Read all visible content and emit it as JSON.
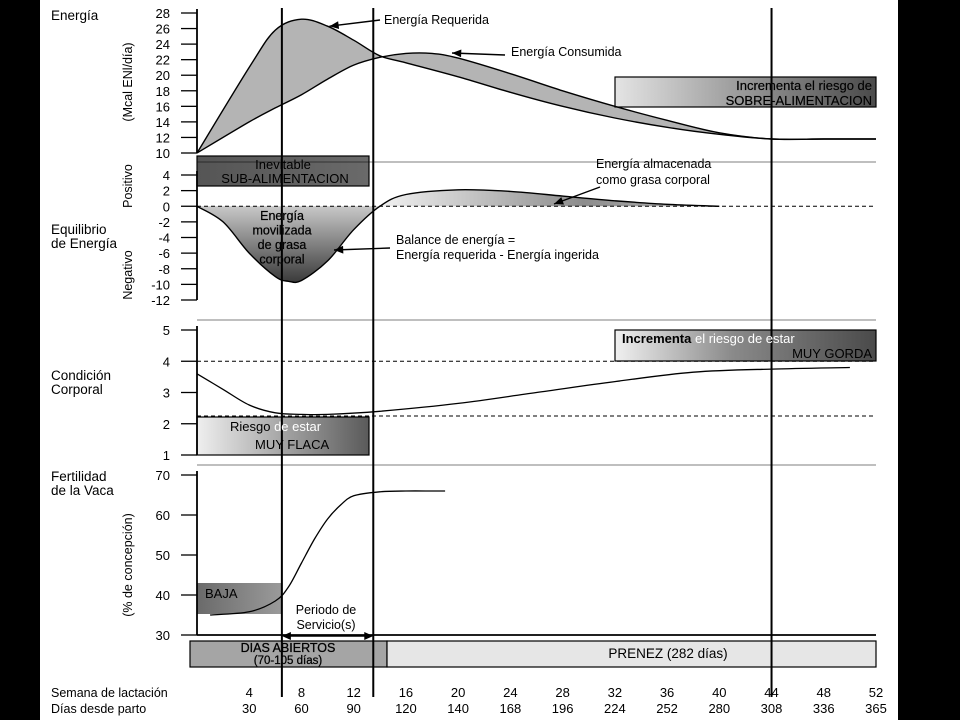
{
  "chart_data": [
    {
      "type": "area",
      "panel": "energy",
      "side_label": "Energía",
      "ylabel": "(Mcal ENl/día)",
      "ylim": [
        10,
        28
      ],
      "yticks": [
        10,
        12,
        14,
        16,
        18,
        20,
        22,
        24,
        26,
        28
      ],
      "series": [
        {
          "name": "Energía Requerida",
          "x": [
            0,
            4,
            6,
            8,
            10,
            12,
            14,
            16,
            20,
            24,
            28,
            32,
            36,
            40,
            44,
            48,
            52
          ],
          "values": [
            10,
            21,
            25.8,
            27.2,
            26.3,
            24.5,
            22.5,
            21.6,
            19.8,
            17.8,
            16,
            14.5,
            13.3,
            12.4,
            11.8,
            11.8,
            11.8
          ]
        },
        {
          "name": "Energía Consumida",
          "x": [
            0,
            4,
            6,
            8,
            10,
            12,
            14,
            16,
            18,
            20,
            24,
            28,
            32,
            36,
            40,
            44,
            48,
            52
          ],
          "values": [
            10,
            14,
            15.8,
            17.5,
            19.5,
            21.3,
            22.3,
            22.8,
            22.8,
            22.2,
            20.2,
            18,
            16,
            14.2,
            12.6,
            11.8,
            11.8,
            11.8
          ]
        }
      ],
      "annotations": [
        {
          "text": "Energía Requerida",
          "x": 9,
          "y": 27.2
        },
        {
          "text": "Energía Consumida",
          "x": 19,
          "y": 22.8
        },
        {
          "lines": [
            "Incrementa el riesgo de",
            "SOBRE-ALIMENTACION"
          ]
        }
      ]
    },
    {
      "type": "area",
      "panel": "energy-balance",
      "side_label_lines": [
        "Equilibrio",
        "de Energía"
      ],
      "ylabel_positive": "Positivo",
      "ylabel_negative": "Negativo",
      "ylim": [
        -12,
        4
      ],
      "yticks": [
        -12,
        -10,
        -8,
        -6,
        -4,
        -2,
        0,
        2,
        4
      ],
      "series": [
        {
          "name": "Balance de energía",
          "x": [
            0,
            2,
            4,
            6,
            7,
            8,
            10,
            12,
            14,
            16,
            20,
            24,
            28,
            32,
            36,
            40
          ],
          "values": [
            0,
            -2,
            -6,
            -9,
            -9.6,
            -9.5,
            -7,
            -3,
            0,
            1.5,
            2.1,
            1.9,
            1.3,
            0.7,
            0.25,
            0
          ]
        }
      ],
      "annotations": [
        {
          "lines": [
            "Inevitable",
            "SUB-ALIMENTACION"
          ]
        },
        {
          "lines": [
            "Energía almacenada",
            "como grasa corporal"
          ],
          "x": 28,
          "y": 1.3
        },
        {
          "lines": [
            "Energía",
            "movilizada",
            "de grasa",
            "corporal"
          ]
        },
        {
          "lines": [
            "Balance de energía =",
            "Energía requerida - Energía ingerida"
          ],
          "x": 10,
          "y": -5
        }
      ]
    },
    {
      "type": "line",
      "panel": "body-condition",
      "side_label_lines": [
        "Condición",
        "Corporal"
      ],
      "ylim": [
        1,
        5
      ],
      "yticks": [
        1,
        2,
        3,
        4,
        5
      ],
      "reference_lines": [
        4,
        2.25
      ],
      "series": [
        {
          "name": "Condición Corporal",
          "x": [
            0,
            2,
            4,
            6,
            8,
            10,
            14,
            20,
            26,
            32,
            38,
            44,
            50
          ],
          "values": [
            3.6,
            3.1,
            2.6,
            2.35,
            2.3,
            2.3,
            2.4,
            2.65,
            3.0,
            3.35,
            3.65,
            3.75,
            3.8
          ]
        }
      ],
      "annotations": [
        {
          "lines": [
            "Incrementa el riesgo de estar",
            "MUY GORDA"
          ],
          "highlight": "Incrementa"
        },
        {
          "lines": [
            "Riesgo de estar",
            "MUY FLACA"
          ],
          "highlight": "Riesgo"
        }
      ]
    },
    {
      "type": "line",
      "panel": "fertility",
      "side_label_lines": [
        "Fertilidad",
        "de la Vaca"
      ],
      "ylabel": "(% de concepción)",
      "ylim": [
        30,
        70
      ],
      "yticks": [
        30,
        40,
        50,
        60,
        70
      ],
      "series": [
        {
          "name": "Fertilidad",
          "x": [
            1,
            4,
            6,
            7,
            8,
            9,
            10,
            11,
            12,
            14,
            16,
            18,
            19
          ],
          "values": [
            35,
            35.8,
            38.5,
            42,
            48,
            54,
            59,
            62.5,
            64.8,
            65.8,
            66,
            66,
            66
          ]
        }
      ],
      "annotations": [
        {
          "text": "BAJA"
        },
        {
          "lines": [
            "Periodo de",
            "Servicio(s)"
          ]
        }
      ]
    }
  ],
  "timeline": {
    "dias_abiertos_lines": [
      "DIAS ABIERTOS",
      "(70-105 días)"
    ],
    "prenez": "PRENEZ  (282 días)"
  },
  "xaxis": {
    "week_label": "Semana de lactación",
    "day_label": "Días desde parto",
    "weeks": [
      4,
      8,
      12,
      16,
      20,
      24,
      28,
      32,
      36,
      40,
      44,
      48,
      52
    ],
    "days": [
      30,
      60,
      90,
      120,
      140,
      168,
      196,
      224,
      252,
      280,
      308,
      336,
      365
    ],
    "xlim": [
      0,
      52
    ],
    "vertical_markers": [
      6.5,
      13.5,
      44
    ]
  }
}
